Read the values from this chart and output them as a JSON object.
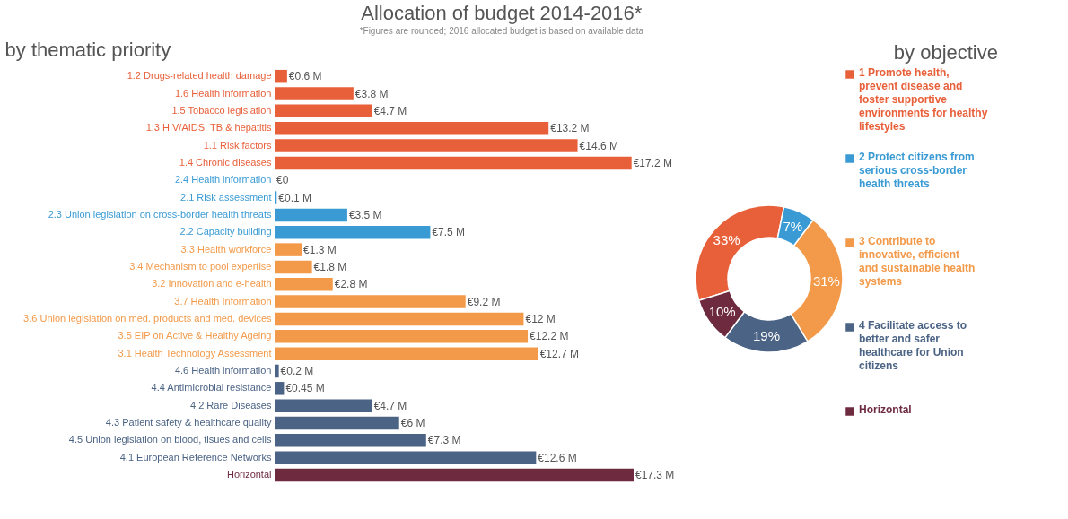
{
  "chart_data": [
    {
      "type": "bar",
      "orientation": "horizontal",
      "title": "Allocation of budget 2014-2016*",
      "subtitle": "*Figures are rounded; 2016 allocated budget is based on available data",
      "annotations": [
        "by thematic priority"
      ],
      "categories": [
        "1.2 Drugs-related health damage",
        "1.6 Health information",
        "1.5 Tobacco legislation",
        "1.3 HIV/AIDS, TB & hepatitis",
        "1.1 Risk factors",
        "1.4 Chronic diseases",
        "2.4 Health information",
        "2.1 Risk assessment",
        "2.3 Union legislation on cross-border health threats",
        "2.2 Capacity building",
        "3.3 Health workforce",
        "3.4 Mechanism to pool expertise",
        "3.2 Innovation and e-health",
        "3.7 Health Information",
        "3.6 Union legislation on med. products and med. devices",
        "3.5 EIP on Active & Healthy Ageing",
        "3.1 Health Technology Assessment",
        "4.6 Health information",
        "4.4 Antimicrobial resistance",
        "4.2 Rare Diseases",
        "4.3 Patient safety & healthcare quality",
        "4.5 Union legislation on blood, tisues and cells",
        "4.1 European Reference Networks",
        "Horizontal"
      ],
      "values": [
        0.6,
        3.8,
        4.7,
        13.2,
        14.6,
        17.2,
        0,
        0.1,
        3.5,
        7.5,
        1.3,
        1.8,
        2.8,
        9.2,
        12,
        12.2,
        12.7,
        0.2,
        0.45,
        4.7,
        6,
        7.3,
        12.6,
        17.3
      ],
      "value_labels": [
        "€0.6 M",
        "€3.8 M",
        "€4.7 M",
        "€13.2 M",
        "€14.6 M",
        "€17.2 M",
        "€0",
        "€0.1 M",
        "€3.5 M",
        "€7.5 M",
        "€1.3 M",
        "€1.8 M",
        "€2.8 M",
        "€9.2 M",
        "€12 M",
        "€12.2 M",
        "€12.7 M",
        "€0.2 M",
        "€0.45 M",
        "€4.7 M",
        "€6 M",
        "€7.3 M",
        "€12.6 M",
        "€17.3 M"
      ],
      "colors": [
        "#e8603a",
        "#e8603a",
        "#e8603a",
        "#e8603a",
        "#e8603a",
        "#e8603a",
        "#3a9bd4",
        "#3a9bd4",
        "#3a9bd4",
        "#3a9bd4",
        "#f39a4a",
        "#f39a4a",
        "#f39a4a",
        "#f39a4a",
        "#f39a4a",
        "#f39a4a",
        "#f39a4a",
        "#4b6385",
        "#4b6385",
        "#4b6385",
        "#4b6385",
        "#4b6385",
        "#4b6385",
        "#6e2b40"
      ]
    },
    {
      "type": "donut",
      "title": "by objective",
      "legend": "right",
      "categories": [
        "1 Promote health, prevent disease and foster supportive environments for healthy lifestyles",
        "2 Protect citizens from serious cross-border health threats",
        "3 Contribute to innovative, efficient and sustainable health systems",
        "4 Facilitate access to better and safer healthcare for Union citizens",
        "Horizontal"
      ],
      "values": [
        33,
        7,
        31,
        19,
        10
      ],
      "value_labels": [
        "33%",
        "7%",
        "31%",
        "19%",
        "10%"
      ],
      "colors": [
        "#e8603a",
        "#3a9bd4",
        "#f39a4a",
        "#4b6385",
        "#6e2b40"
      ]
    }
  ]
}
